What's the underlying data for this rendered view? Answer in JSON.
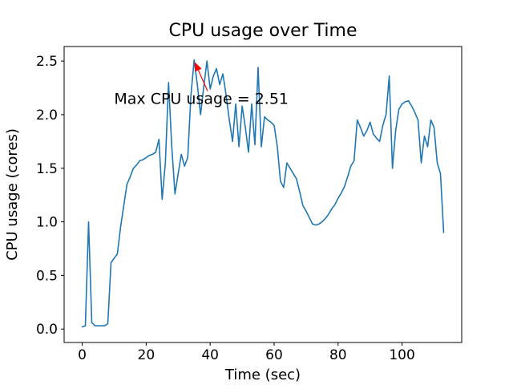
{
  "chart_data": {
    "type": "line",
    "title": "CPU usage over Time",
    "xlabel": "Time (sec)",
    "ylabel": "CPU usage (cores)",
    "legend": null,
    "grid": false,
    "background": "#ffffff",
    "line_color": "#1f77b4",
    "xlim": [
      -5.65,
      118.65
    ],
    "ylim": [
      -0.1255,
      2.6355
    ],
    "xticks": [
      0,
      20,
      40,
      60,
      80,
      100
    ],
    "xtick_labels": [
      "0",
      "20",
      "40",
      "60",
      "80",
      "100"
    ],
    "yticks": [
      0,
      0.5,
      1,
      1.5,
      2,
      2.5
    ],
    "ytick_labels": [
      "0.0",
      "0.5",
      "1.0",
      "1.5",
      "2.0",
      "2.5"
    ],
    "x": [
      0,
      1,
      2,
      3,
      4,
      5,
      6,
      7,
      8,
      9,
      10,
      11,
      12,
      13,
      14,
      15,
      16,
      17,
      18,
      19,
      20,
      21,
      22,
      23,
      24,
      25,
      26,
      27,
      28,
      29,
      30,
      31,
      32,
      33,
      34,
      35,
      36,
      37,
      38,
      39,
      40,
      41,
      42,
      43,
      44,
      45,
      46,
      47,
      48,
      49,
      50,
      51,
      52,
      53,
      54,
      55,
      56,
      57,
      58,
      59,
      60,
      61,
      62,
      63,
      64,
      65,
      66,
      67,
      68,
      69,
      70,
      71,
      72,
      73,
      74,
      75,
      76,
      77,
      78,
      79,
      80,
      81,
      82,
      83,
      84,
      85,
      86,
      87,
      88,
      89,
      90,
      91,
      92,
      93,
      94,
      95,
      96,
      97,
      98,
      99,
      100,
      101,
      102,
      103,
      104,
      105,
      106,
      107,
      108,
      109,
      110,
      111,
      112,
      113
    ],
    "y": [
      0.02,
      0.03,
      1.0,
      0.06,
      0.03,
      0.03,
      0.03,
      0.03,
      0.05,
      0.62,
      0.66,
      0.7,
      0.95,
      1.15,
      1.35,
      1.42,
      1.5,
      1.53,
      1.57,
      1.58,
      1.6,
      1.62,
      1.63,
      1.65,
      1.77,
      1.21,
      1.55,
      2.3,
      1.7,
      1.26,
      1.45,
      1.63,
      1.52,
      1.6,
      2.18,
      2.51,
      2.28,
      2.0,
      2.26,
      2.5,
      2.24,
      2.36,
      2.43,
      2.28,
      2.38,
      2.18,
      1.95,
      1.75,
      2.1,
      1.7,
      2.08,
      1.88,
      1.65,
      2.1,
      1.72,
      2.44,
      1.7,
      1.98,
      1.95,
      1.93,
      1.9,
      1.7,
      1.38,
      1.32,
      1.55,
      1.5,
      1.45,
      1.4,
      1.28,
      1.15,
      1.1,
      1.04,
      0.98,
      0.97,
      0.98,
      1.0,
      1.03,
      1.07,
      1.12,
      1.16,
      1.22,
      1.27,
      1.33,
      1.42,
      1.52,
      1.57,
      1.95,
      1.88,
      1.8,
      1.85,
      1.93,
      1.82,
      1.78,
      1.75,
      1.9,
      2.0,
      2.36,
      1.5,
      1.85,
      2.05,
      2.1,
      2.12,
      2.13,
      2.08,
      2.02,
      1.95,
      1.55,
      1.8,
      1.7,
      1.95,
      1.88,
      1.55,
      1.45,
      0.9
    ],
    "max_value": 2.51,
    "annotation": {
      "text": "Max CPU usage = 2.51",
      "color": "#ff0000",
      "xy": [
        35.2,
        2.49
      ],
      "arrow_tail": [
        39.2,
        2.22
      ],
      "xytext": [
        10,
        2.1
      ]
    }
  }
}
